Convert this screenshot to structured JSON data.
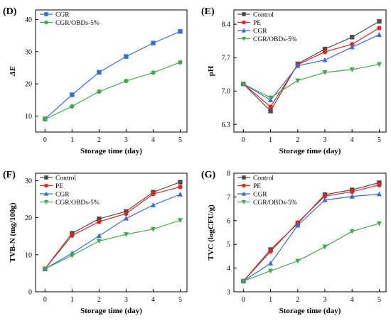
{
  "colors": {
    "Control": "#4d4d4d",
    "PE": "#e8241c",
    "CGR": "#2f6fe4",
    "CGR/OBDs-5%": "#3fae49"
  },
  "chart_data": [
    {
      "id": "D",
      "type": "line",
      "panel_label": "(D)",
      "xlabel": "Storage time (day)",
      "ylabel": "ΔE",
      "x": [
        0,
        1,
        2,
        3,
        4,
        5
      ],
      "xticks": [
        "0",
        "1",
        "2",
        "3",
        "4",
        "5"
      ],
      "xlim": [
        -0.35,
        5.25
      ],
      "ylim": [
        5,
        43
      ],
      "yticks": [
        "10",
        "20",
        "30",
        "40"
      ],
      "ytick_values": [
        10,
        20,
        30,
        40
      ],
      "legend_position": "top-left",
      "series": [
        {
          "name": "CGR",
          "values": [
            9.1,
            16.6,
            23.6,
            28.5,
            32.7,
            36.3
          ],
          "marker": "square",
          "color": "#2f6fe4"
        },
        {
          "name": "CGR/OBDs-5%",
          "values": [
            9.0,
            13.0,
            17.6,
            20.9,
            23.5,
            26.7
          ],
          "marker": "circle",
          "color": "#3fae49"
        }
      ]
    },
    {
      "id": "E",
      "type": "line",
      "panel_label": "(E)",
      "xlabel": "Storage time (day)",
      "ylabel": "pH",
      "x": [
        0,
        1,
        2,
        3,
        4,
        5
      ],
      "xticks": [
        "0",
        "1",
        "2",
        "3",
        "4",
        "5"
      ],
      "xlim": [
        -0.35,
        5.25
      ],
      "ylim": [
        6.14,
        8.7
      ],
      "yticks": [
        "6.3",
        "7.0",
        "7.7",
        "8.4"
      ],
      "ytick_values": [
        6.3,
        7.0,
        7.7,
        8.4
      ],
      "legend_position": "top-left",
      "series": [
        {
          "name": "Control",
          "values": [
            7.15,
            6.58,
            7.57,
            7.88,
            8.13,
            8.46
          ],
          "marker": "square",
          "color": "#4d4d4d"
        },
        {
          "name": "PE",
          "values": [
            7.15,
            6.67,
            7.55,
            7.82,
            7.98,
            8.32
          ],
          "marker": "circle",
          "color": "#e8241c"
        },
        {
          "name": "CGR",
          "values": [
            7.15,
            6.81,
            7.53,
            7.65,
            7.92,
            8.18
          ],
          "marker": "triangle",
          "color": "#2f6fe4"
        },
        {
          "name": "CGR/OBDs-5%",
          "values": [
            7.15,
            6.86,
            7.22,
            7.39,
            7.45,
            7.56
          ],
          "marker": "triangle-down",
          "color": "#3fae49"
        }
      ]
    },
    {
      "id": "F",
      "type": "line",
      "panel_label": "(F)",
      "xlabel": "Storage time (day)",
      "ylabel": "TVB-N (mg/100g)",
      "x": [
        0,
        1,
        2,
        3,
        4,
        5
      ],
      "xticks": [
        "0",
        "1",
        "2",
        "3",
        "4",
        "5"
      ],
      "xlim": [
        -0.35,
        5.25
      ],
      "ylim": [
        0,
        32
      ],
      "yticks": [
        "0",
        "10",
        "20",
        "30"
      ],
      "ytick_values": [
        0,
        10,
        20,
        30
      ],
      "legend_position": "top-left",
      "series": [
        {
          "name": "Control",
          "values": [
            6.2,
            15.8,
            19.7,
            21.7,
            26.9,
            29.6
          ],
          "marker": "square",
          "color": "#4d4d4d"
        },
        {
          "name": "PE",
          "values": [
            6.2,
            15.2,
            18.9,
            21.1,
            26.4,
            28.3
          ],
          "marker": "circle",
          "color": "#e8241c"
        },
        {
          "name": "CGR",
          "values": [
            6.2,
            10.4,
            15.1,
            19.8,
            23.4,
            26.3
          ],
          "marker": "triangle",
          "color": "#2f6fe4"
        },
        {
          "name": "CGR/OBDs-5%",
          "values": [
            6.2,
            9.8,
            13.7,
            15.5,
            16.9,
            19.3
          ],
          "marker": "triangle-down",
          "color": "#3fae49"
        }
      ]
    },
    {
      "id": "G",
      "type": "line",
      "panel_label": "(G)",
      "xlabel": "Storage time (day)",
      "ylabel": "TVC (logCFU/g)",
      "x": [
        0,
        1,
        2,
        3,
        4,
        5
      ],
      "xticks": [
        "0",
        "1",
        "2",
        "3",
        "4",
        "5"
      ],
      "xlim": [
        -0.35,
        5.25
      ],
      "ylim": [
        3,
        8
      ],
      "yticks": [
        "3",
        "4",
        "5",
        "6",
        "7",
        "8"
      ],
      "ytick_values": [
        3,
        4,
        5,
        6,
        7,
        8
      ],
      "legend_position": "top-left",
      "series": [
        {
          "name": "Control",
          "values": [
            3.45,
            4.78,
            5.88,
            7.1,
            7.3,
            7.6
          ],
          "marker": "square",
          "color": "#4d4d4d"
        },
        {
          "name": "PE",
          "values": [
            3.45,
            4.7,
            5.92,
            7.03,
            7.22,
            7.5
          ],
          "marker": "circle",
          "color": "#e8241c"
        },
        {
          "name": "CGR",
          "values": [
            3.45,
            4.2,
            5.8,
            6.87,
            7.02,
            7.12
          ],
          "marker": "triangle",
          "color": "#2f6fe4"
        },
        {
          "name": "CGR/OBDs-5%",
          "values": [
            3.45,
            3.88,
            4.3,
            4.9,
            5.55,
            5.88
          ],
          "marker": "triangle-down",
          "color": "#3fae49"
        }
      ]
    }
  ]
}
